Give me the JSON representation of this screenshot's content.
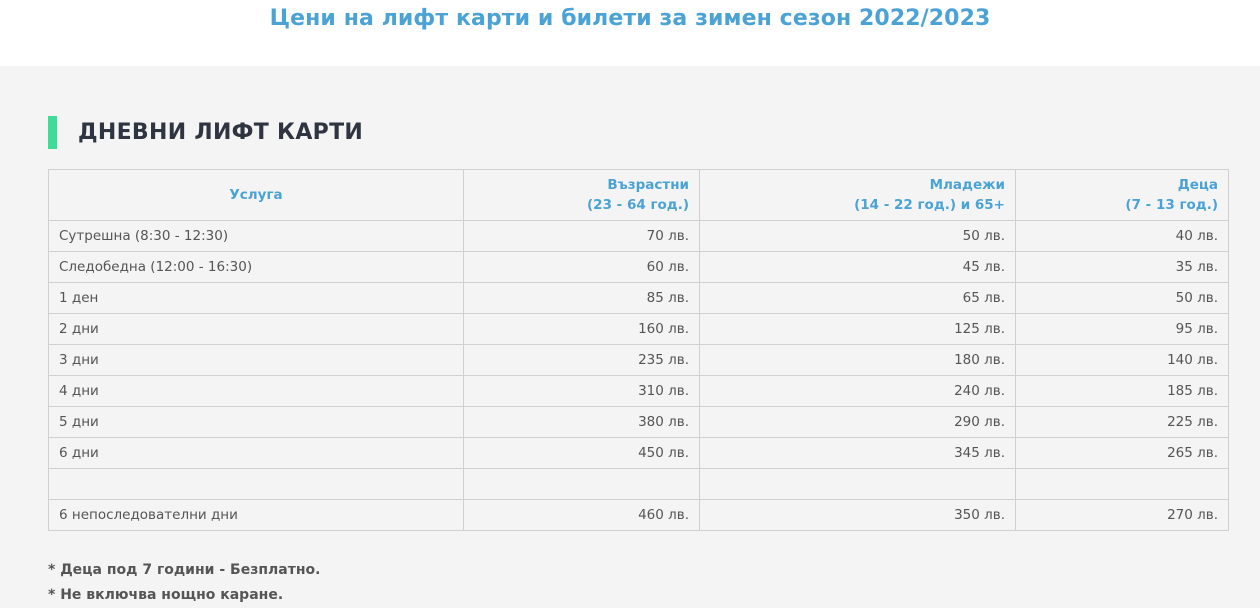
{
  "header": {
    "title": "Цени на лифт карти и билети за зимен сезон 2022/2023"
  },
  "section": {
    "heading": "ДНЕВНИ ЛИФТ КАРТИ"
  },
  "table": {
    "columns": [
      {
        "line1": "Услуга",
        "line2": ""
      },
      {
        "line1": "Възрастни",
        "line2": "(23 - 64 год.)"
      },
      {
        "line1": "Младежи",
        "line2": "(14 - 22 год.) и 65+"
      },
      {
        "line1": "Деца",
        "line2": "(7 - 13 год.)"
      }
    ],
    "rows": [
      {
        "service": "Сутрешна (8:30 - 12:30)",
        "adults": "70 лв.",
        "youth": "50 лв.",
        "kids": "40 лв."
      },
      {
        "service": "Следобедна (12:00 - 16:30)",
        "adults": "60 лв.",
        "youth": "45 лв.",
        "kids": "35 лв."
      },
      {
        "service": "1 ден",
        "adults": "85 лв.",
        "youth": "65 лв.",
        "kids": "50 лв."
      },
      {
        "service": "2 дни",
        "adults": "160 лв.",
        "youth": "125 лв.",
        "kids": "95 лв."
      },
      {
        "service": "3 дни",
        "adults": "235 лв.",
        "youth": "180 лв.",
        "kids": "140 лв."
      },
      {
        "service": "4 дни",
        "adults": "310 лв.",
        "youth": "240 лв.",
        "kids": "185 лв."
      },
      {
        "service": "5 дни",
        "adults": "380 лв.",
        "youth": "290 лв.",
        "kids": "225 лв."
      },
      {
        "service": "6 дни",
        "adults": "450 лв.",
        "youth": "345 лв.",
        "kids": "265 лв."
      },
      {
        "service": "",
        "adults": "",
        "youth": "",
        "kids": ""
      },
      {
        "service": "6 непоследователни дни",
        "adults": "460 лв.",
        "youth": "350 лв.",
        "kids": "270 лв."
      }
    ]
  },
  "notes": [
    "* Деца под 7 години - Безплатно.",
    "* Не включва нощно каране."
  ],
  "colors": {
    "accent_blue": "#4aa3d4",
    "accent_green": "#3ddc97",
    "heading_dark": "#2f3540",
    "background": "#f4f4f4"
  }
}
